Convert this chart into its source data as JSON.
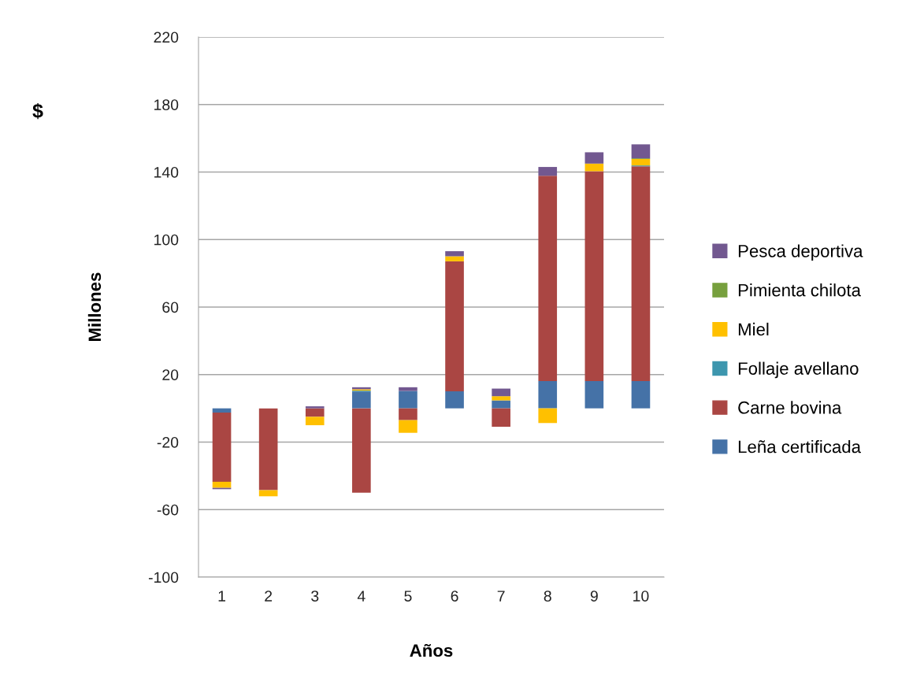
{
  "chart_data": {
    "type": "bar",
    "stacked": true,
    "xlabel": "Años",
    "ylabel": "Millones",
    "annotations": [
      "$"
    ],
    "categories": [
      "1",
      "2",
      "3",
      "4",
      "5",
      "6",
      "7",
      "8",
      "9",
      "10"
    ],
    "series": [
      {
        "name": "Leña certificada",
        "color": "#4572a7",
        "values": [
          -2.5,
          0,
          0,
          10,
          10.3,
          10.1,
          4.7,
          16.2,
          16.2,
          16.2
        ]
      },
      {
        "name": "Carne bovina",
        "color": "#aa4643",
        "values": [
          -41,
          -48.5,
          -5,
          -50,
          -7,
          77,
          -10.9,
          121.6,
          124.3,
          127.2
        ]
      },
      {
        "name": "Follaje avellano",
        "color": "#3d96ae",
        "values": [
          0,
          0,
          0,
          0.5,
          0,
          0,
          0,
          0,
          0,
          0.5
        ]
      },
      {
        "name": "Miel",
        "color": "#ffc000",
        "values": [
          -3.6,
          -3.6,
          -5,
          0.8,
          -7.5,
          3,
          2.5,
          -8.7,
          4.5,
          3.8
        ]
      },
      {
        "name": "Pimienta chilota",
        "color": "#77a03e",
        "values": [
          0,
          0,
          0,
          0,
          0,
          0,
          0,
          0,
          0,
          0.4
        ]
      },
      {
        "name": "Pesca deportiva",
        "color": "#725890",
        "values": [
          -0.8,
          0,
          1.2,
          1.2,
          2.2,
          3,
          4.5,
          5.2,
          6.7,
          8.3
        ]
      }
    ],
    "ylim": [
      -100,
      220
    ],
    "yticks": [
      -100,
      -60,
      -20,
      20,
      60,
      100,
      140,
      180,
      220
    ],
    "grid": "y",
    "legend": "right"
  }
}
